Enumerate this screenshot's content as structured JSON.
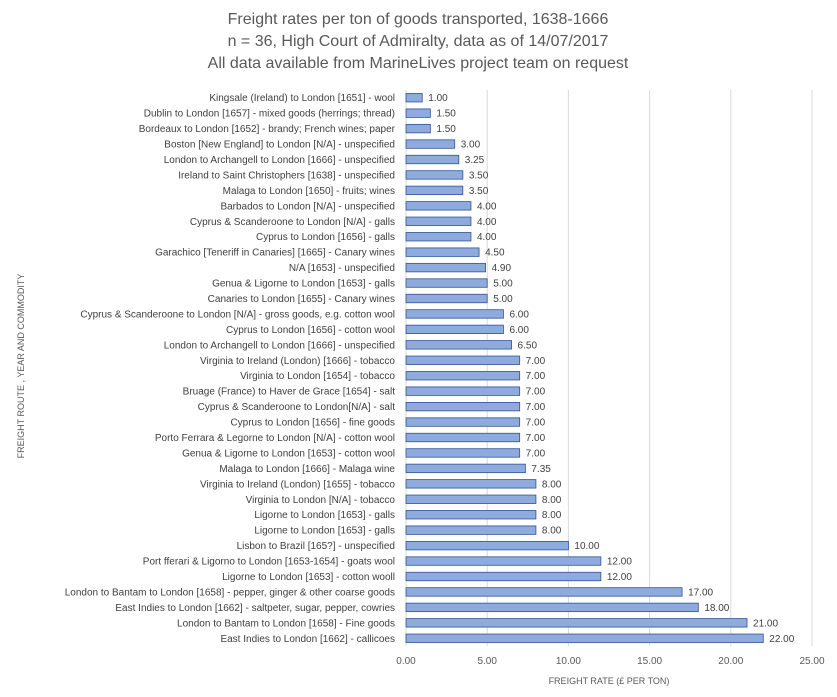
{
  "chart_data": {
    "type": "bar",
    "orientation": "horizontal",
    "title": [
      "Freight rates per ton of goods transported, 1638-1666",
      "n = 36, High Court of Admiralty, data as of 14/07/2017",
      "All data available from MarineLives project team on request"
    ],
    "xlabel": "FREIGHT RATE (£ PER TON)",
    "ylabel": "FREIGHT ROUTE , YEAR AND COMMODITY",
    "xlim": [
      0,
      25
    ],
    "xticks": [
      "0.00",
      "5.00",
      "10.00",
      "15.00",
      "20.00",
      "25.00"
    ],
    "xtick_values": [
      0,
      5,
      10,
      15,
      20,
      25
    ],
    "grid": "vertical",
    "bar_color": "#8faadc",
    "bar_border_color": "#2f5597",
    "categories": [
      "Kingsale (Ireland) to London [1651] - wool",
      "Dublin to London [1657] - mixed goods (herrings; thread)",
      "Bordeaux to London [1652] - brandy; French wines; paper",
      "Boston [New England] to London [N/A] - unspecified",
      "London to Archangell to London [1666] - unspecified",
      "Ireland to Saint Christophers [1638] - unspecified",
      "Malaga to London [1650] - fruits; wines",
      "Barbados to London [N/A] - unspecified",
      "Cyprus & Scanderoone to London [N/A] - galls",
      "Cyprus to London [1656] - galls",
      "Garachico [Teneriff in Canaries] [1665] - Canary wines",
      "N/A [1653] - unspecified",
      "Genua & Ligorne to London [1653] - galls",
      "Canaries to London [1655] - Canary wines",
      "Cyprus & Scanderoone to London [N/A] - gross goods, e.g. cotton wool",
      "Cyprus to London [1656] - cotton wool",
      "London to Archangell to London [1666] - unspecified",
      "Virginia to Ireland (London) [1666] - tobacco",
      "Virginia to London [1654] - tobacco",
      "Bruage (France) to Haver de Grace [1654] - salt",
      "Cyprus & Scanderoone to London[N/A] - salt",
      "Cyprus to London [1656] - fine goods",
      "Porto Ferrara & Legorne to London [N/A] - cotton wool",
      "Genua & Ligorne to London [1653] - cotton wool",
      "Malaga to London [1666] - Malaga wine",
      "Virginia to Ireland (London) [1655] - tobacco",
      "Virginia to London [N/A] - tobacco",
      "Ligorne to London [1653] - galls",
      "Ligorne to London [1653] - galls",
      "Lisbon to Brazil [165?] - unspecified",
      "Port fferari & Ligorno to London [1653-1654] - goats wool",
      "Ligorne to London [1653] - cotton wooll",
      "London to Bantam to London [1658] - pepper, ginger & other coarse goods",
      "East Indies to London [1662] - saltpeter, sugar, pepper, cowries",
      "London to Bantam to London [1658] - Fine goods",
      "East Indies to London [1662] - callicoes"
    ],
    "values": [
      1.0,
      1.5,
      1.5,
      3.0,
      3.25,
      3.5,
      3.5,
      4.0,
      4.0,
      4.0,
      4.5,
      4.9,
      5.0,
      5.0,
      6.0,
      6.0,
      6.5,
      7.0,
      7.0,
      7.0,
      7.0,
      7.0,
      7.0,
      7.0,
      7.35,
      8.0,
      8.0,
      8.0,
      8.0,
      10.0,
      12.0,
      12.0,
      17.0,
      18.0,
      21.0,
      22.0
    ],
    "data_labels": [
      "1.00",
      "1.50",
      "1.50",
      "3.00",
      "3.25",
      "3.50",
      "3.50",
      "4.00",
      "4.00",
      "4.00",
      "4.50",
      "4.90",
      "5.00",
      "5.00",
      "6.00",
      "6.00",
      "6.50",
      "7.00",
      "7.00",
      "7.00",
      "7.00",
      "7.00",
      "7.00",
      "7.00",
      "7.35",
      "8.00",
      "8.00",
      "8.00",
      "8.00",
      "10.00",
      "12.00",
      "12.00",
      "17.00",
      "18.00",
      "21.00",
      "22.00"
    ]
  }
}
